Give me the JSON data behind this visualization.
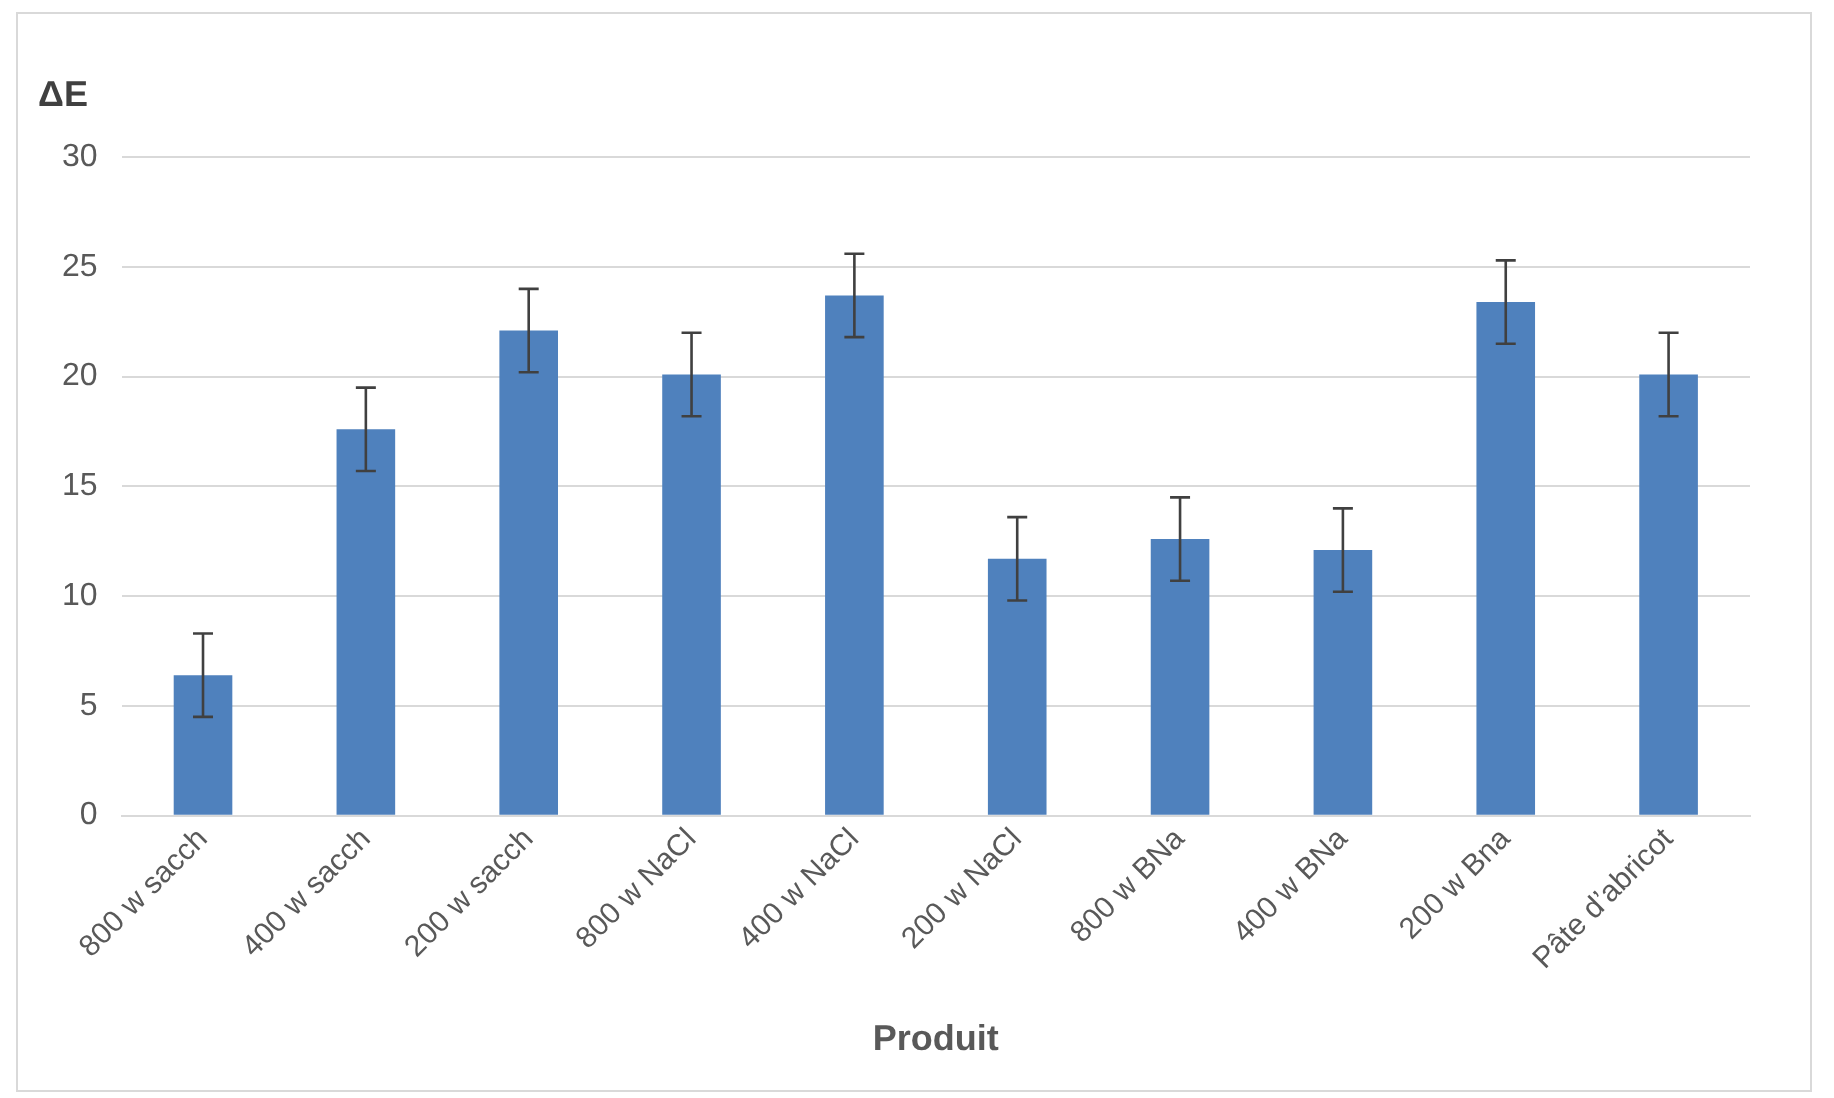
{
  "chart_data": {
    "type": "bar",
    "ylabel": "ΔE",
    "xlabel": "Produit",
    "categories": [
      "800 w sacch",
      "400 w sacch",
      "200 w sacch",
      "800 w NaCl",
      "400 w NaCl",
      "200 w NaCl",
      "800 w BNa",
      "400 w BNa",
      "200 w Bna",
      "Pâte d’abricot"
    ],
    "values": [
      6.4,
      17.6,
      22.1,
      20.1,
      23.7,
      11.7,
      12.6,
      12.1,
      23.4,
      20.1
    ],
    "errors": [
      1.9,
      1.9,
      1.9,
      1.9,
      1.9,
      1.9,
      1.9,
      1.9,
      1.9,
      1.9
    ],
    "color": "#4f81bd",
    "ylim": [
      0,
      30
    ],
    "yticks": [
      0,
      5,
      10,
      15,
      20,
      25,
      30
    ],
    "grid": "y"
  }
}
